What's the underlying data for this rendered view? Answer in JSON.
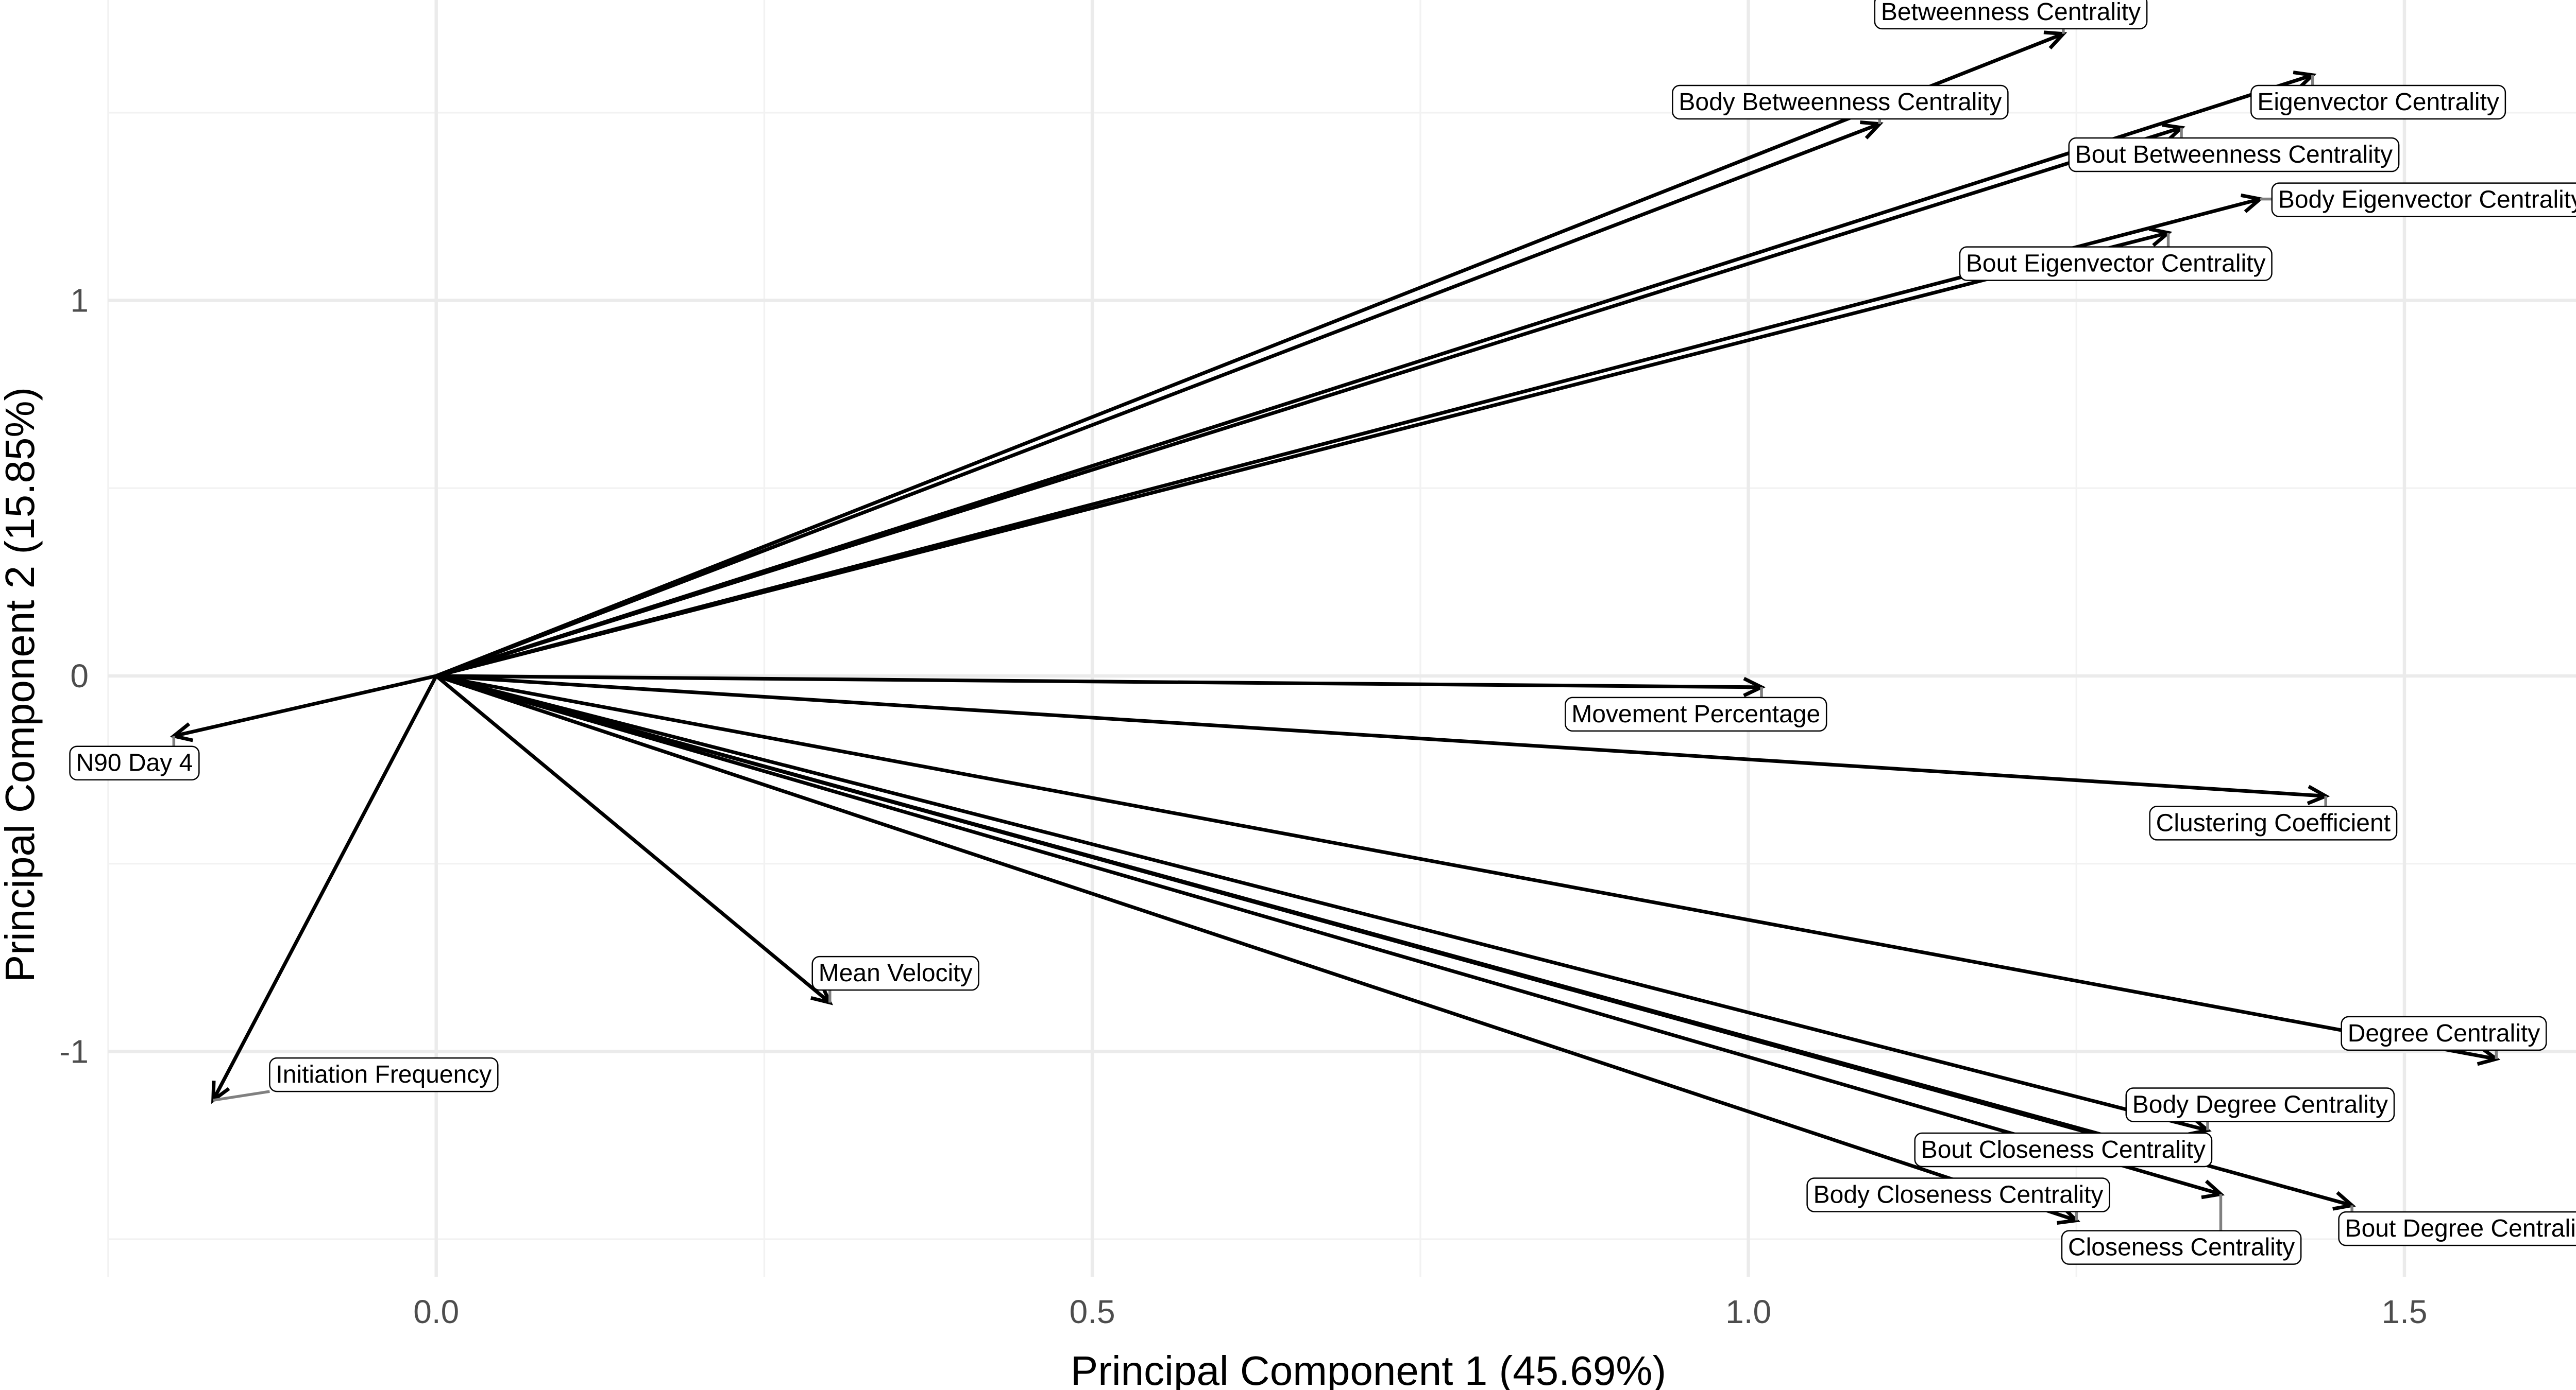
{
  "chart_data": {
    "type": "scatter",
    "subtype": "pca-loading-biplot",
    "title": "",
    "xlabel": "Principal Component 1 (45.69%)",
    "ylabel": "Principal Component 2 (15.85%)",
    "xlim": [
      -0.25,
      1.67
    ],
    "ylim": [
      -1.6,
      1.8
    ],
    "x_ticks": [
      {
        "value": 0.0,
        "label": "0.0"
      },
      {
        "value": 0.5,
        "label": "0.5"
      },
      {
        "value": 1.0,
        "label": "1.0"
      },
      {
        "value": 1.5,
        "label": "1.5"
      }
    ],
    "y_ticks": [
      {
        "value": 1,
        "label": "1"
      },
      {
        "value": 0,
        "label": "0"
      },
      {
        "value": -1,
        "label": "-1"
      }
    ],
    "grid": true,
    "legend": "none",
    "origin": [
      0,
      0
    ],
    "vectors": [
      {
        "name": "Betweenness Centrality",
        "x": 1.24,
        "y": 1.71,
        "label_x": 1.2,
        "label_y": 1.77
      },
      {
        "name": "Body Betweenness Centrality",
        "x": 1.1,
        "y": 1.47,
        "label_x": 1.07,
        "label_y": 1.53
      },
      {
        "name": "Eigenvector Centrality",
        "x": 1.43,
        "y": 1.6,
        "label_x": 1.48,
        "label_y": 1.53
      },
      {
        "name": "Bout Betweenness Centrality",
        "x": 1.33,
        "y": 1.46,
        "label_x": 1.37,
        "label_y": 1.39
      },
      {
        "name": "Body Eigenvector Centrality",
        "x": 1.39,
        "y": 1.27,
        "label_x": 1.52,
        "label_y": 1.27
      },
      {
        "name": "Bout Eigenvector Centrality",
        "x": 1.32,
        "y": 1.18,
        "label_x": 1.28,
        "label_y": 1.1
      },
      {
        "name": "Movement Percentage",
        "x": 1.01,
        "y": -0.03,
        "label_x": 0.96,
        "label_y": -0.1
      },
      {
        "name": "Clustering Coefficient",
        "x": 1.44,
        "y": -0.32,
        "label_x": 1.4,
        "label_y": -0.39
      },
      {
        "name": "Degree Centrality",
        "x": 1.57,
        "y": -1.02,
        "label_x": 1.53,
        "label_y": -0.95
      },
      {
        "name": "Body Degree Centrality",
        "x": 1.35,
        "y": -1.21,
        "label_x": 1.39,
        "label_y": -1.14
      },
      {
        "name": "Bout Closeness Centrality",
        "x": 1.32,
        "y": -1.27,
        "label_x": 1.24,
        "label_y": -1.26
      },
      {
        "name": "Body Closeness Centrality",
        "x": 1.25,
        "y": -1.45,
        "label_x": 1.16,
        "label_y": -1.38
      },
      {
        "name": "Closeness Centrality",
        "x": 1.36,
        "y": -1.38,
        "label_x": 1.33,
        "label_y": -1.52
      },
      {
        "name": "Bout Degree Centrality",
        "x": 1.46,
        "y": -1.41,
        "label_x": 1.55,
        "label_y": -1.47
      },
      {
        "name": "Mean Velocity",
        "x": 0.3,
        "y": -0.87,
        "label_x": 0.35,
        "label_y": -0.79
      },
      {
        "name": "N90 Day 4",
        "x": -0.2,
        "y": -0.16,
        "label_x": -0.23,
        "label_y": -0.23
      },
      {
        "name": "Initiation Frequency",
        "x": -0.17,
        "y": -1.13,
        "label_x": -0.04,
        "label_y": -1.06
      }
    ]
  }
}
